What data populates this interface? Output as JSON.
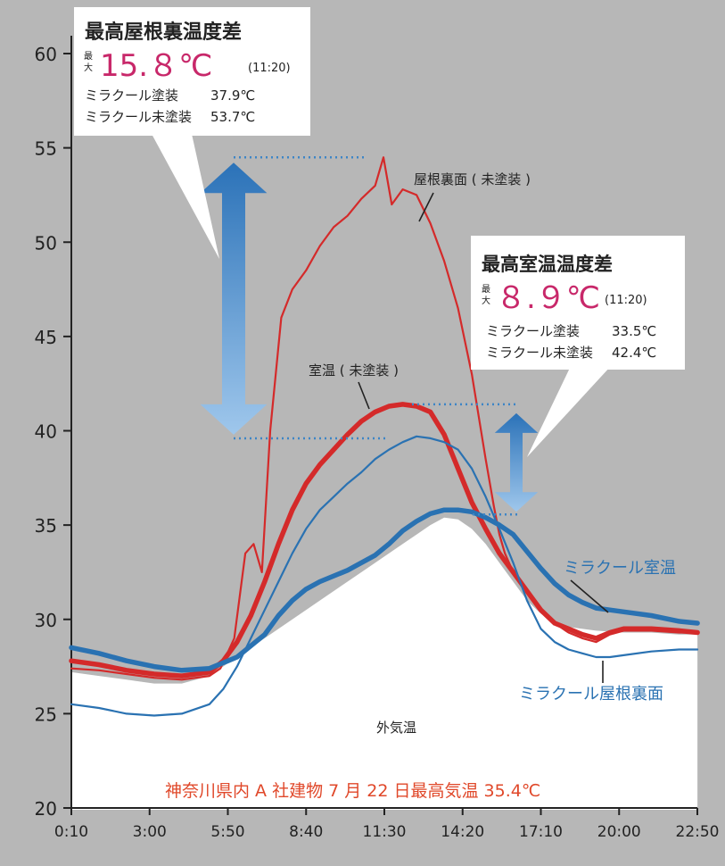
{
  "chart_data": {
    "type": "line",
    "x_ticks": [
      "0:10",
      "3:00",
      "5:50",
      "8:40",
      "11:30",
      "14:20",
      "17:10",
      "20:00",
      "22:50"
    ],
    "y_ticks": [
      20,
      25,
      30,
      35,
      40,
      45,
      50,
      55,
      60
    ],
    "ylim": [
      20,
      62
    ],
    "colors": {
      "red": "#d42a2a",
      "blue": "#2a72b2",
      "callout_value": "#c8286a",
      "footnote": "#e0482a",
      "arrow": "#3d85c6"
    },
    "series": [
      {
        "name": "屋根裏面(未塗装)",
        "color": "#d42a2a",
        "style": "thin",
        "x": [
          0.0,
          1.0,
          2.0,
          3.0,
          4.0,
          5.0,
          5.4,
          5.9,
          6.3,
          6.6,
          6.9,
          7.2,
          7.6,
          8.0,
          8.5,
          9.0,
          9.5,
          10.0,
          10.5,
          11.0,
          11.3,
          11.6,
          12.0,
          12.5,
          13.0,
          13.5,
          14.0,
          14.5,
          15.0,
          15.3,
          15.5,
          15.7,
          16.0,
          16.5,
          17.0,
          17.5,
          18.0,
          18.5,
          19.0,
          19.5,
          20.0,
          21.0,
          22.0,
          22.67
        ],
        "y": [
          27.4,
          27.3,
          27.1,
          26.9,
          26.8,
          27.0,
          27.4,
          29.0,
          33.5,
          34.0,
          32.5,
          40.0,
          46.0,
          47.5,
          48.5,
          49.8,
          50.8,
          51.4,
          52.3,
          53.0,
          54.5,
          52.0,
          52.8,
          52.5,
          51.0,
          49.0,
          46.5,
          43.0,
          38.5,
          36.0,
          34.5,
          33.5,
          32.5,
          31.5,
          30.5,
          29.8,
          29.3,
          29.0,
          28.8,
          29.2,
          29.4,
          29.4,
          29.3,
          29.3
        ]
      },
      {
        "name": "室温(未塗装)",
        "color": "#d42a2a",
        "style": "thick",
        "x": [
          0.0,
          1.0,
          2.0,
          3.0,
          4.0,
          5.0,
          5.5,
          6.0,
          6.5,
          7.0,
          7.5,
          8.0,
          8.5,
          9.0,
          9.5,
          10.0,
          10.5,
          11.0,
          11.5,
          12.0,
          12.5,
          13.0,
          13.5,
          14.0,
          14.5,
          15.0,
          15.5,
          16.0,
          16.5,
          17.0,
          17.5,
          18.0,
          18.5,
          19.0,
          19.5,
          20.0,
          21.0,
          22.0,
          22.67
        ],
        "y": [
          27.8,
          27.6,
          27.3,
          27.1,
          27.0,
          27.2,
          27.8,
          28.8,
          30.2,
          32.0,
          34.0,
          35.8,
          37.2,
          38.2,
          39.0,
          39.8,
          40.5,
          41.0,
          41.3,
          41.4,
          41.3,
          41.0,
          39.8,
          38.0,
          36.2,
          34.8,
          33.5,
          32.5,
          31.5,
          30.5,
          29.8,
          29.5,
          29.2,
          29.0,
          29.3,
          29.5,
          29.5,
          29.4,
          29.3
        ]
      },
      {
        "name": "ミラクール屋根裏面",
        "color": "#2a72b2",
        "style": "thin",
        "x": [
          0.0,
          1.0,
          2.0,
          3.0,
          4.0,
          5.0,
          5.5,
          6.0,
          6.5,
          7.0,
          7.5,
          8.0,
          8.5,
          9.0,
          9.5,
          10.0,
          10.5,
          11.0,
          11.5,
          12.0,
          12.5,
          13.0,
          13.5,
          14.0,
          14.5,
          15.0,
          15.5,
          16.0,
          16.5,
          17.0,
          17.5,
          18.0,
          18.5,
          19.0,
          19.5,
          20.0,
          21.0,
          22.0,
          22.67
        ],
        "y": [
          25.5,
          25.3,
          25.0,
          24.9,
          25.0,
          25.5,
          26.3,
          27.5,
          29.0,
          30.5,
          32.0,
          33.5,
          34.8,
          35.8,
          36.5,
          37.2,
          37.8,
          38.5,
          39.0,
          39.4,
          39.7,
          39.6,
          39.4,
          39.0,
          38.0,
          36.5,
          34.8,
          33.0,
          31.0,
          29.5,
          28.8,
          28.4,
          28.2,
          28.0,
          28.0,
          28.1,
          28.3,
          28.4,
          28.4
        ]
      },
      {
        "name": "ミラクール室温",
        "color": "#2a72b2",
        "style": "thick",
        "x": [
          0.0,
          1.0,
          2.0,
          3.0,
          4.0,
          5.0,
          6.0,
          7.0,
          7.5,
          8.0,
          8.5,
          9.0,
          10.0,
          11.0,
          11.5,
          12.0,
          12.5,
          13.0,
          13.5,
          14.0,
          14.5,
          15.0,
          15.5,
          16.0,
          16.5,
          17.0,
          17.5,
          18.0,
          18.5,
          19.0,
          19.5,
          20.0,
          21.0,
          22.0,
          22.67
        ],
        "y": [
          28.5,
          28.2,
          27.8,
          27.5,
          27.3,
          27.4,
          28.0,
          29.2,
          30.2,
          31.0,
          31.6,
          32.0,
          32.6,
          33.4,
          34.0,
          34.7,
          35.2,
          35.6,
          35.8,
          35.8,
          35.7,
          35.4,
          35.0,
          34.5,
          33.6,
          32.7,
          31.9,
          31.3,
          30.9,
          30.6,
          30.5,
          30.4,
          30.2,
          29.9,
          29.8
        ]
      },
      {
        "name": "外気温",
        "color": "#ffffff",
        "style": "area",
        "x": [
          0.0,
          1.0,
          2.0,
          3.0,
          4.0,
          5.0,
          6.0,
          7.0,
          8.0,
          9.0,
          10.0,
          11.0,
          12.0,
          12.5,
          13.0,
          13.5,
          14.0,
          14.5,
          15.0,
          15.5,
          16.0,
          16.5,
          17.0,
          17.5,
          18.0,
          19.0,
          20.0,
          21.0,
          22.0,
          22.67
        ],
        "y": [
          27.2,
          27.0,
          26.8,
          26.6,
          26.6,
          27.0,
          28.0,
          29.0,
          30.0,
          31.0,
          32.0,
          33.0,
          34.0,
          34.5,
          35.0,
          35.4,
          35.3,
          34.8,
          34.0,
          33.0,
          32.0,
          31.0,
          30.3,
          29.9,
          29.6,
          29.4,
          29.3,
          29.3,
          29.2,
          29.2
        ]
      }
    ],
    "series_labels": [
      {
        "text": "屋根裏面 ( 未塗装 )",
        "color": "#222222"
      },
      {
        "text": "室温 ( 未塗装 )",
        "color": "#222222"
      },
      {
        "text": "ミラクール室温",
        "color": "#2a72b2"
      },
      {
        "text": "ミラクール屋根裏面",
        "color": "#2a72b2"
      },
      {
        "text": "外気温",
        "color": "#222222"
      }
    ],
    "callout_roof": {
      "title": "最高屋根裏温度差",
      "max_label": "最大",
      "value": "15.８℃",
      "time": "(11:20)",
      "rows": [
        {
          "label": "ミラクール塗装",
          "value": "37.9℃"
        },
        {
          "label": "ミラクール未塗装",
          "value": "53.7℃"
        }
      ]
    },
    "callout_room": {
      "title": "最高室温温度差",
      "max_label": "最大",
      "value": "８.９℃",
      "time": "(11:20)",
      "rows": [
        {
          "label": "ミラクール塗装",
          "value": "33.5℃"
        },
        {
          "label": "ミラクール未塗装",
          "value": "42.4℃"
        }
      ]
    },
    "footnote": "神奈川県内 A 社建物 7 月 22 日最高気温 35.4℃"
  }
}
